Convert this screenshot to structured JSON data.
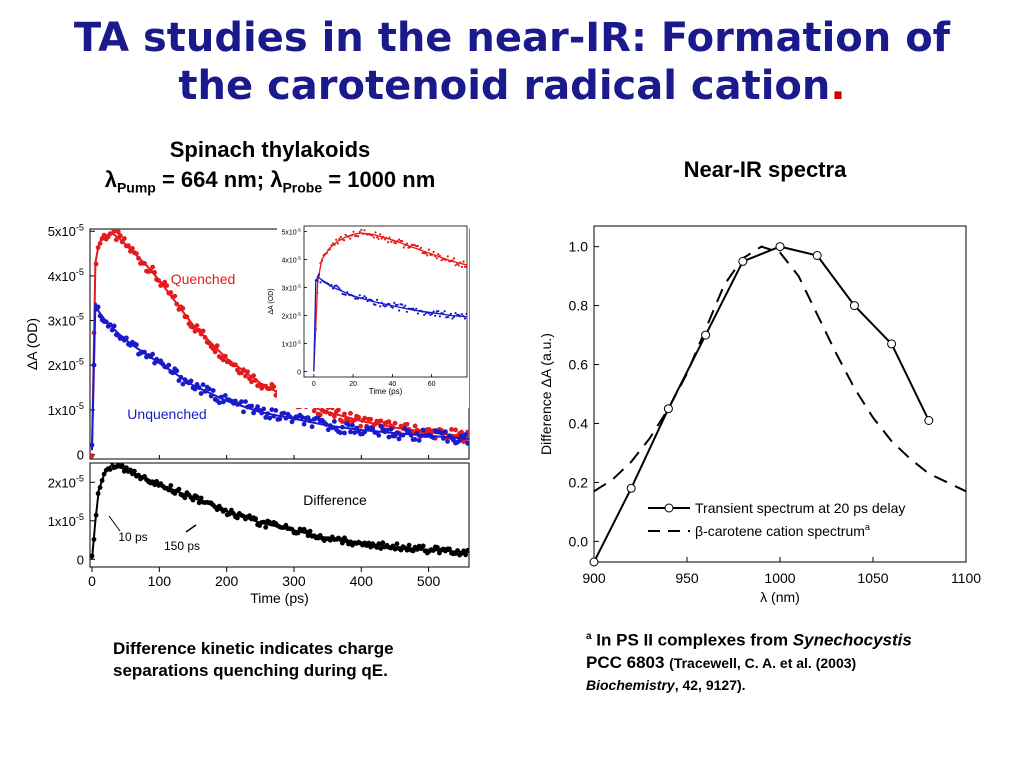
{
  "slide": {
    "title_line1": "TA studies in the near-IR: Formation of",
    "title_line2": "the carotenoid radical cation",
    "title_period": ".",
    "left_heading": "Spinach thylakoids",
    "pump_prefix": "λ",
    "pump_sub": "Pump",
    "pump_value": " = 664 nm; ",
    "probe_prefix": "λ",
    "probe_sub": "Probe",
    "probe_value": " = 1000 nm",
    "right_heading": "Near-IR spectra",
    "left_note_line1": "Difference kinetic indicates charge",
    "left_note_line2": "separations quenching during qE.",
    "ref_sup": "a",
    "ref_text1": " In  PS II complexes from ",
    "ref_species": "Synechocystis",
    "ref_strain": "PCC 6803 ",
    "ref_small1": "(Tracewell, C. A. et al.  (2003)",
    "ref_journal": "Biochemistry",
    "ref_small2": ", 42, 9127)."
  },
  "chart_data": [
    {
      "type": "line",
      "id": "kinetics-top",
      "ylabel": "ΔA (OD)",
      "xlim": [
        -3,
        560
      ],
      "ylim": [
        -0.1,
        5.05
      ],
      "y_multiplier_label": "x10-5",
      "yticks": [
        "0",
        "1x10-5",
        "2x10-5",
        "3x10-5",
        "4x10-5",
        "5x10-5"
      ],
      "series": [
        {
          "name": "Quenched",
          "color": "#e41a1c",
          "x": [
            0,
            5,
            10,
            15,
            20,
            30,
            40,
            60,
            80,
            100,
            150,
            200,
            250,
            300,
            350,
            400,
            450,
            500,
            560
          ],
          "y": [
            0.1,
            4.3,
            4.7,
            4.85,
            4.9,
            4.95,
            4.85,
            4.55,
            4.25,
            3.9,
            2.9,
            2.15,
            1.6,
            1.2,
            0.95,
            0.75,
            0.6,
            0.5,
            0.4
          ]
        },
        {
          "name": "Unquenched",
          "color": "#1a1acc",
          "x": [
            0,
            5,
            10,
            20,
            40,
            60,
            80,
            100,
            150,
            200,
            250,
            300,
            350,
            400,
            450,
            500,
            560
          ],
          "y": [
            0.1,
            3.4,
            3.2,
            3.0,
            2.7,
            2.45,
            2.25,
            2.05,
            1.55,
            1.2,
            0.95,
            0.8,
            0.65,
            0.55,
            0.48,
            0.42,
            0.35
          ]
        }
      ]
    },
    {
      "type": "line",
      "id": "kinetics-inset",
      "xlabel": "Time (ps)",
      "ylabel": "ΔA (OD)",
      "xlim": [
        -5,
        78
      ],
      "ylim": [
        -0.2,
        5.2
      ],
      "xticks": [
        0,
        20,
        40,
        60
      ],
      "yticks": [
        "0",
        "1x10-5",
        "2x10-5",
        "3x10-5",
        "4x10-5",
        "5x10-5"
      ],
      "series": [
        {
          "name": "Quenched",
          "color": "#e41a1c",
          "x": [
            0,
            2,
            4,
            8,
            12,
            16,
            20,
            24,
            30,
            40,
            50,
            60,
            70,
            78
          ],
          "y": [
            0,
            3.2,
            4.0,
            4.4,
            4.65,
            4.8,
            4.9,
            4.95,
            4.9,
            4.7,
            4.45,
            4.2,
            3.95,
            3.8
          ]
        },
        {
          "name": "Unquenched",
          "color": "#1a1acc",
          "x": [
            0,
            1,
            2,
            5,
            10,
            15,
            20,
            30,
            40,
            50,
            60,
            70,
            78
          ],
          "y": [
            0,
            3.2,
            3.4,
            3.2,
            3.0,
            2.85,
            2.7,
            2.5,
            2.35,
            2.2,
            2.1,
            2.0,
            1.95
          ]
        }
      ]
    },
    {
      "type": "line",
      "id": "kinetics-difference",
      "xlabel": "Time (ps)",
      "xlim": [
        -3,
        560
      ],
      "ylim": [
        -0.2,
        2.5
      ],
      "xticks": [
        0,
        100,
        200,
        300,
        400,
        500
      ],
      "yticks": [
        "0",
        "1x10-5",
        "2x10-5"
      ],
      "series": [
        {
          "name": "Difference",
          "color": "#000000",
          "x": [
            0,
            5,
            10,
            20,
            30,
            40,
            60,
            80,
            100,
            150,
            200,
            250,
            300,
            350,
            400,
            450,
            500,
            560
          ],
          "y": [
            0,
            1.0,
            1.8,
            2.3,
            2.45,
            2.4,
            2.25,
            2.1,
            1.95,
            1.6,
            1.25,
            0.95,
            0.75,
            0.55,
            0.42,
            0.32,
            0.25,
            0.18
          ]
        }
      ],
      "annotations": [
        "10 ps",
        "150 ps"
      ]
    },
    {
      "type": "line",
      "id": "near-ir-spectra",
      "xlabel": "λ (nm)",
      "ylabel": "Difference ΔA (a.u.)",
      "xlim": [
        900,
        1100
      ],
      "ylim": [
        -0.07,
        1.07
      ],
      "xticks": [
        900,
        950,
        1000,
        1050,
        1100
      ],
      "yticks": [
        0.0,
        0.2,
        0.4,
        0.6,
        0.8,
        1.0
      ],
      "legend_position": "bottom-right",
      "series": [
        {
          "name": "Transient spectrum at 20 ps delay",
          "color": "#000000",
          "x": [
            900,
            920,
            940,
            960,
            980,
            1000,
            1020,
            1040,
            1060,
            1080
          ],
          "y": [
            -0.07,
            0.18,
            0.45,
            0.7,
            0.95,
            1.0,
            0.97,
            0.8,
            0.67,
            0.41
          ]
        },
        {
          "name": "β-carotene cation spectrum",
          "sup": "a",
          "color": "#000000",
          "x": [
            900,
            910,
            920,
            930,
            940,
            950,
            960,
            970,
            980,
            990,
            1000,
            1010,
            1020,
            1030,
            1040,
            1050,
            1060,
            1070,
            1080,
            1090,
            1100
          ],
          "y": [
            0.17,
            0.21,
            0.27,
            0.35,
            0.45,
            0.57,
            0.72,
            0.87,
            0.96,
            1.0,
            0.98,
            0.9,
            0.77,
            0.64,
            0.52,
            0.42,
            0.34,
            0.28,
            0.23,
            0.2,
            0.17
          ]
        }
      ]
    }
  ]
}
